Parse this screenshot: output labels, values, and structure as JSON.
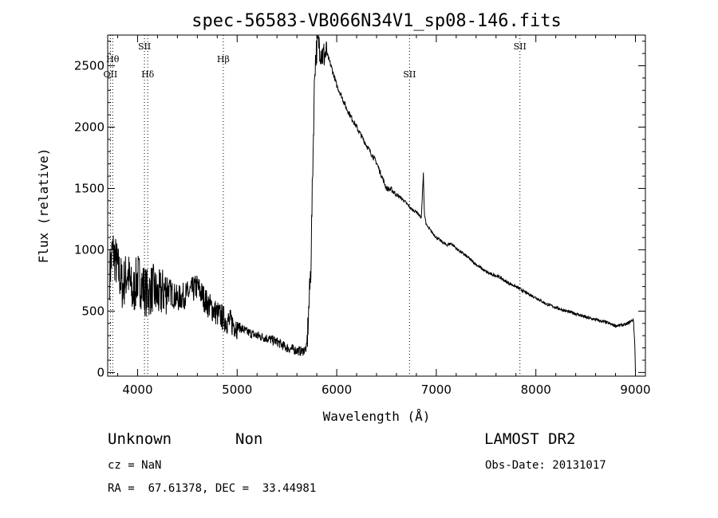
{
  "chart_data": {
    "type": "line",
    "title": "spec-56583-VB066N34V1_sp08-146.fits",
    "xlabel": "Wavelength (Å)",
    "ylabel": "Flux (relative)",
    "xlim": [
      3700,
      9100
    ],
    "ylim": [
      -30,
      2750
    ],
    "xticks": [
      4000,
      5000,
      6000,
      7000,
      8000,
      9000
    ],
    "yticks": [
      0,
      500,
      1000,
      1500,
      2000,
      2500
    ],
    "grid": false,
    "series": [
      {
        "x": [
          3720,
          3750,
          3800,
          3850,
          3900,
          3950,
          4000,
          4050,
          4100,
          4150,
          4200,
          4300,
          4400,
          4500,
          4600,
          4700,
          4800,
          4900,
          5000,
          5100,
          5200,
          5300,
          5400,
          5500,
          5550,
          5600,
          5650,
          5700,
          5740,
          5760,
          5780,
          5800,
          5820,
          5840,
          5860,
          5900,
          5950,
          6000,
          6050,
          6100,
          6200,
          6300,
          6400,
          6500,
          6550,
          6600,
          6650,
          6700,
          6750,
          6800,
          6850,
          6870,
          6880,
          6900,
          6950,
          7000,
          7100,
          7150,
          7180,
          7200,
          7300,
          7400,
          7500,
          7550,
          7600,
          7650,
          7700,
          7800,
          7900,
          8000,
          8100,
          8200,
          8300,
          8400,
          8500,
          8600,
          8700,
          8800,
          8900,
          8960,
          8980,
          8995,
          9000
        ],
        "y": [
          800,
          1000,
          850,
          700,
          820,
          620,
          780,
          700,
          640,
          690,
          620,
          680,
          600,
          640,
          700,
          560,
          480,
          420,
          380,
          330,
          300,
          280,
          250,
          200,
          190,
          180,
          170,
          200,
          850,
          1700,
          2500,
          2650,
          2700,
          2620,
          2580,
          2600,
          2480,
          2340,
          2250,
          2150,
          2000,
          1850,
          1710,
          1500,
          1490,
          1450,
          1420,
          1380,
          1330,
          1310,
          1260,
          1620,
          1300,
          1200,
          1150,
          1100,
          1040,
          1050,
          1030,
          1010,
          950,
          880,
          820,
          800,
          790,
          770,
          740,
          700,
          650,
          610,
          560,
          530,
          500,
          480,
          450,
          430,
          410,
          380,
          390,
          420,
          430,
          200,
          0
        ]
      }
    ],
    "line_markers": [
      {
        "label": "OII",
        "x": 3727,
        "level": 3
      },
      {
        "label": "Hθ",
        "x": 3750,
        "level": 2
      },
      {
        "label": "SII",
        "x": 4069,
        "level": 1
      },
      {
        "label": "Hδ",
        "x": 4102,
        "level": 3
      },
      {
        "label": "Hβ",
        "x": 4861,
        "level": 2
      },
      {
        "label": "SII",
        "x": 6731,
        "level": 3
      },
      {
        "label": "SII",
        "x": 7840,
        "level": 1
      }
    ]
  },
  "info": {
    "class_label": "Unknown",
    "subclass_label": "Non",
    "survey": "LAMOST DR2",
    "cz": "cz = NaN",
    "obs_date": "Obs-Date: 20131017",
    "radec": "RA =  67.61378, DEC =  33.44981"
  }
}
